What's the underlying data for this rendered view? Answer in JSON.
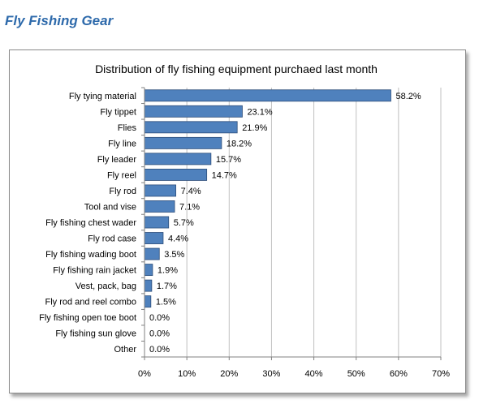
{
  "page": {
    "heading": "Fly Fishing Gear"
  },
  "colors": {
    "heading": "#2e6aab",
    "bar_fill": "#4f81bd",
    "bar_edge": "#2c4d7a",
    "gridline": "#c0c0c0",
    "axis": "#808080"
  },
  "chart_data": {
    "type": "bar",
    "orientation": "horizontal",
    "title": "Distribution of fly fishing equipment purchaed last month",
    "xlabel": "",
    "ylabel": "",
    "xlim": [
      0,
      70
    ],
    "grid": true,
    "legend": "none",
    "x_ticks": [
      "0%",
      "10%",
      "20%",
      "30%",
      "40%",
      "50%",
      "60%",
      "70%"
    ],
    "x_tick_values": [
      0,
      10,
      20,
      30,
      40,
      50,
      60,
      70
    ],
    "categories": [
      "Fly tying material",
      "Fly tippet",
      "Flies",
      "Fly line",
      "Fly leader",
      "Fly reel",
      "Fly rod",
      "Tool and vise",
      "Fly fishing chest wader",
      "Fly rod case",
      "Fly fishing wading boot",
      "Fly fishing rain jacket",
      "Vest, pack, bag",
      "Fly rod and reel combo",
      "Fly fishing open toe boot",
      "Fly fishing sun glove",
      "Other"
    ],
    "values": [
      58.2,
      23.1,
      21.9,
      18.2,
      15.7,
      14.7,
      7.4,
      7.1,
      5.7,
      4.4,
      3.5,
      1.9,
      1.7,
      1.5,
      0.0,
      0.0,
      0.0
    ],
    "value_labels": [
      "58.2%",
      "23.1%",
      "21.9%",
      "18.2%",
      "15.7%",
      "14.7%",
      "7.4%",
      "7.1%",
      "5.7%",
      "4.4%",
      "3.5%",
      "1.9%",
      "1.7%",
      "1.5%",
      "0.0%",
      "0.0%",
      "0.0%"
    ]
  }
}
